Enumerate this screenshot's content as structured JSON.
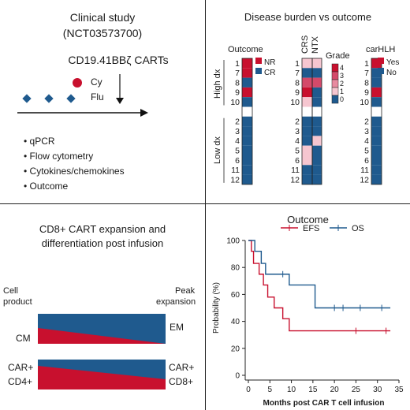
{
  "colors": {
    "red": "#c8102e",
    "blue": "#1f5a8e",
    "pink_light": "#f6c6d0",
    "pink_mid": "#e88aa0",
    "pink_dark": "#d44a6a",
    "white": "#ffffff",
    "text": "#1a1a1a"
  },
  "q1": {
    "title_line1": "Clinical study",
    "title_line2": "(NCT03573700)",
    "product": "CD19.41BBζ CARTs",
    "cy_label": "Cy",
    "flu_label": "Flu",
    "bullets": [
      "• qPCR",
      "• Flow cytometry",
      "• Cytokines/chemokines",
      "• Outcome"
    ]
  },
  "q2": {
    "title": "Disease burden vs outcome",
    "outcome_header": "Outcome",
    "crs_header": "CRS",
    "ntx_header": "NTX",
    "grade_header": "Grade",
    "carhlh_header": "carHLH",
    "group_high": "High dx",
    "group_low": "Low dx",
    "row_labels": [
      "1",
      "7",
      "8",
      "9",
      "10",
      "",
      "2",
      "3",
      "4",
      "5",
      "6",
      "11",
      "12"
    ],
    "outcome_legend": [
      "NR",
      "CR"
    ],
    "grade_legend": [
      "4",
      "3",
      "2",
      "1",
      "0"
    ],
    "carhlh_legend": [
      "Yes",
      "No"
    ],
    "outcome": [
      "NR",
      "NR",
      "CR",
      "NR",
      "CR",
      "",
      "CR",
      "CR",
      "CR",
      "CR",
      "CR",
      "CR",
      "CR"
    ],
    "crs_grade": [
      1,
      0,
      3,
      4,
      1,
      null,
      0,
      0,
      0,
      1,
      1,
      0,
      0
    ],
    "ntx_grade": [
      1,
      0,
      3,
      0,
      0,
      null,
      0,
      0,
      1,
      0,
      0,
      0,
      0
    ],
    "carhlh": [
      "Yes",
      "No",
      "No",
      "Yes",
      "No",
      "",
      "No",
      "No",
      "No",
      "No",
      "No",
      "No",
      "No"
    ]
  },
  "q3": {
    "title_line1": "CD8+ CART expansion and",
    "title_line2": "differentiation post infusion",
    "cell_product_line1": "Cell",
    "cell_product_line2": "product",
    "peak_line1": "Peak",
    "peak_line2": "expansion",
    "cm": "CM",
    "em": "EM",
    "car_left": "CAR+",
    "cd4": "CD4+",
    "car_right": "CAR+",
    "cd8": "CD8+"
  },
  "q4": {
    "title": "Outcome",
    "chart_data": {
      "type": "line",
      "title": "Outcome",
      "xlabel": "Months post CAR T cell infusion",
      "ylabel": "Probability (%)",
      "xlim": [
        0,
        35
      ],
      "ylim": [
        0,
        100
      ],
      "xticks": [
        "0",
        "5",
        "10",
        "15",
        "20",
        "25",
        "30",
        "35"
      ],
      "yticks": [
        "0",
        "20",
        "40",
        "60",
        "80",
        "100"
      ],
      "legend": "top",
      "series": [
        {
          "name": "EFS",
          "color": "#c8102e",
          "steps": [
            [
              0,
              100
            ],
            [
              0.7,
              92
            ],
            [
              1.2,
              83
            ],
            [
              2.5,
              75
            ],
            [
              3.5,
              67
            ],
            [
              4.5,
              58
            ],
            [
              6,
              50
            ],
            [
              8,
              42
            ],
            [
              9.5,
              33
            ],
            [
              33,
              33
            ]
          ],
          "censor": [
            [
              25,
              33
            ],
            [
              32,
              33
            ]
          ]
        },
        {
          "name": "OS",
          "color": "#1f5a8e",
          "steps": [
            [
              0,
              100
            ],
            [
              1.5,
              92
            ],
            [
              3,
              83
            ],
            [
              4,
              75
            ],
            [
              9.5,
              67
            ],
            [
              15.5,
              50
            ],
            [
              33,
              50
            ]
          ],
          "censor": [
            [
              8,
              75
            ],
            [
              20,
              50
            ],
            [
              22,
              50
            ],
            [
              26,
              50
            ],
            [
              31,
              50
            ]
          ]
        }
      ]
    }
  }
}
